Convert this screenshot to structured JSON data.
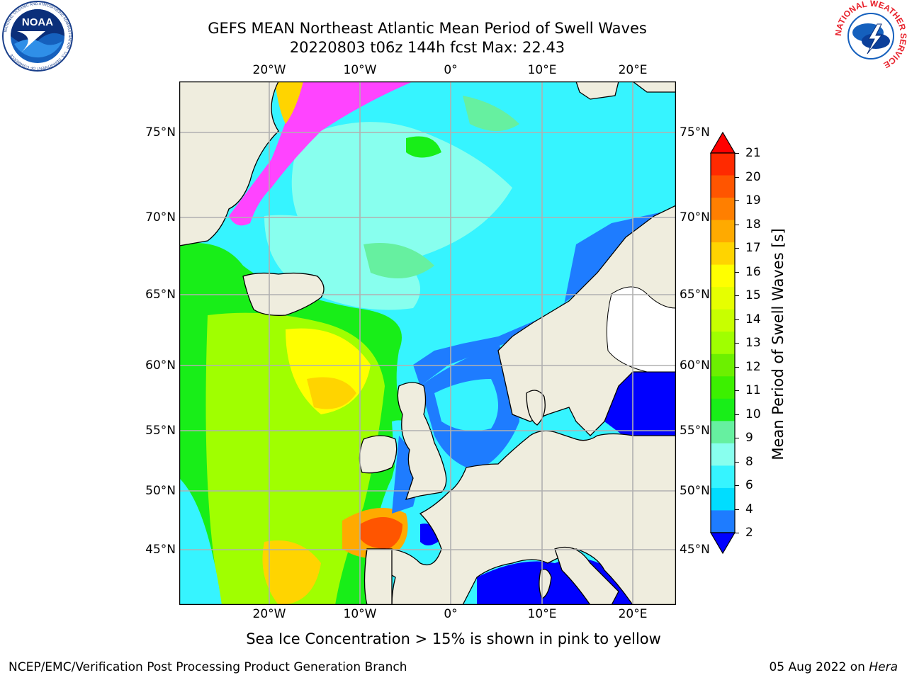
{
  "title_line1": "GEFS MEAN Northeast Atlantic Mean Period of Swell Waves",
  "title_line2": "20220803 t06z 144h fcst   Max: 22.43",
  "caption": "Sea Ice Concentration > 15% is shown in pink to yellow",
  "footer_left": "NCEP/EMC/Verification Post Processing Product Generation Branch",
  "footer_right_date": "05 Aug 2022 on ",
  "footer_right_host": "Hera",
  "lon_labels": [
    "20°W",
    "10°W",
    "0°",
    "10°E",
    "20°E"
  ],
  "lat_labels": [
    "75°N",
    "70°N",
    "65°N",
    "60°N",
    "55°N",
    "50°N",
    "45°N"
  ],
  "colorbar": {
    "label": "Mean Period of Swell Waves [s]",
    "ticks": [
      "21",
      "20",
      "19",
      "18",
      "17",
      "16",
      "15",
      "14",
      "13",
      "12",
      "11",
      "10",
      "9",
      "8",
      "6",
      "4",
      "2"
    ],
    "colors": [
      "#ff2a00",
      "#ff5500",
      "#ff7f00",
      "#ffaa00",
      "#ffd400",
      "#ffff00",
      "#e6ff00",
      "#c8ff00",
      "#a0ff00",
      "#6cf000",
      "#3cf000",
      "#18ee18",
      "#66f0a0",
      "#88ffee",
      "#36f4ff",
      "#00ddff",
      "#1e7cff"
    ],
    "under_color": "#0000ff",
    "over_color": "#ff0000"
  },
  "logos": {
    "noaa_text": "NOAA",
    "noaa_ring": "NATIONAL OCEANIC AND ATMOSPHERIC ADMINISTRATION · U.S. DEPARTMENT OF COMMERCE",
    "nws_ring": "NATIONAL WEATHER SERVICE"
  },
  "map": {
    "land_color": "#efedde",
    "ocean_colors": {
      "deep_blue": "#0000ff",
      "blue": "#1e7cff",
      "cyan": "#00ddff",
      "light_cyan": "#36f4ff",
      "aqua": "#88ffee",
      "sea_green": "#66f0a0",
      "green": "#18ee18",
      "lime": "#a0ff00",
      "yellow": "#ffff00",
      "orange": "#ffaa00",
      "red_orange": "#ff5500",
      "ice_pink": "#ff44ff"
    },
    "gridline_color": "#b0b0b0"
  }
}
